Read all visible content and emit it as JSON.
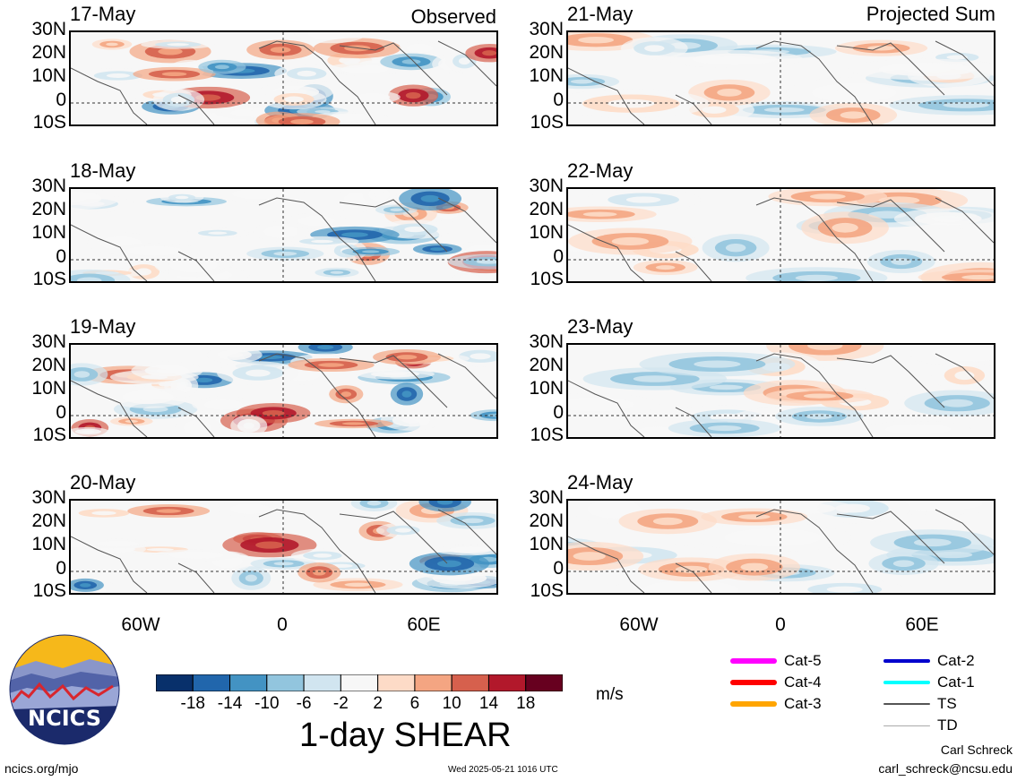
{
  "header": {
    "observed_label": "Observed",
    "projected_label": "Projected Sum"
  },
  "panels": {
    "left": [
      {
        "date": "17-May"
      },
      {
        "date": "18-May"
      },
      {
        "date": "19-May"
      },
      {
        "date": "20-May"
      }
    ],
    "right": [
      {
        "date": "21-May"
      },
      {
        "date": "22-May"
      },
      {
        "date": "23-May"
      },
      {
        "date": "24-May"
      }
    ]
  },
  "axes": {
    "lat_labels": [
      "30N",
      "20N",
      "10N",
      "0",
      "10S"
    ],
    "lon_labels": [
      "60W",
      "0",
      "60E"
    ]
  },
  "colorbar": {
    "tick_labels": [
      "-18",
      "-14",
      "-10",
      "-6",
      "-2",
      "2",
      "6",
      "10",
      "14",
      "18"
    ],
    "colors": [
      "#08306b",
      "#2166ac",
      "#4393c3",
      "#92c5de",
      "#d1e5f0",
      "#f7f7f7",
      "#fddbc7",
      "#f4a582",
      "#d6604d",
      "#b2182b",
      "#67001f"
    ],
    "units": "m/s",
    "title": "1-day SHEAR"
  },
  "legend": {
    "items": [
      {
        "label": "Cat-5",
        "color": "#ff00ff"
      },
      {
        "label": "Cat-4",
        "color": "#ff0000"
      },
      {
        "label": "Cat-3",
        "color": "#ffa500"
      },
      {
        "label": "Cat-2",
        "color": "#0000cd"
      },
      {
        "label": "Cat-1",
        "color": "#00ffff"
      },
      {
        "label": "TS",
        "color": "#555555"
      },
      {
        "label": "TD",
        "color": "#aaaaaa"
      }
    ]
  },
  "logo": {
    "text": "NCICS"
  },
  "footer": {
    "url": "ncics.org/mjo",
    "timestamp": "Wed 2025-05-21 1016 UTC",
    "author": "Carl Schreck",
    "email": "carl_schreck@ncsu.edu"
  }
}
